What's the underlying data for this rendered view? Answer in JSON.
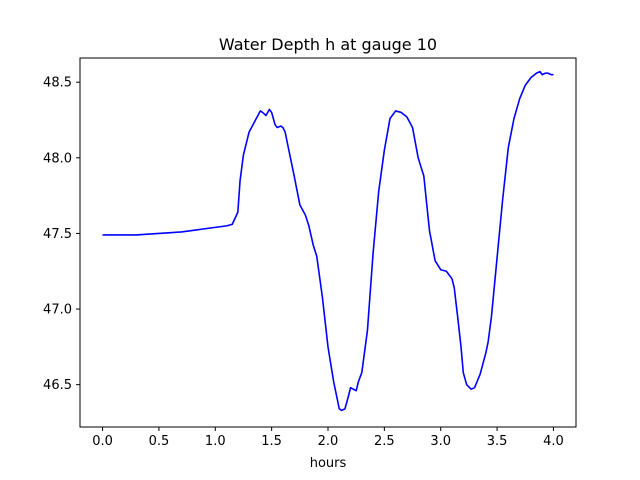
{
  "chart_data": {
    "type": "line",
    "title": "Water Depth h at gauge 10",
    "xlabel": "hours",
    "ylabel": "",
    "xlim": [
      -0.2,
      4.2
    ],
    "ylim": [
      46.22,
      48.66
    ],
    "xticks": [
      0.0,
      0.5,
      1.0,
      1.5,
      2.0,
      2.5,
      3.0,
      3.5,
      4.0
    ],
    "xtick_labels": [
      "0.0",
      "0.5",
      "1.0",
      "1.5",
      "2.0",
      "2.5",
      "3.0",
      "3.5",
      "4.0"
    ],
    "yticks": [
      46.5,
      47.0,
      47.5,
      48.0,
      48.5
    ],
    "ytick_labels": [
      "46.5",
      "47.0",
      "47.5",
      "48.0",
      "48.5"
    ],
    "grid": false,
    "series": [
      {
        "color": "#0000ff",
        "x": [
          0.0,
          0.3,
          0.5,
          0.7,
          0.8,
          0.9,
          1.0,
          1.1,
          1.15,
          1.2,
          1.22,
          1.25,
          1.27,
          1.3,
          1.35,
          1.4,
          1.42,
          1.45,
          1.48,
          1.5,
          1.53,
          1.55,
          1.58,
          1.6,
          1.62,
          1.65,
          1.7,
          1.75,
          1.8,
          1.83,
          1.87,
          1.9,
          1.95,
          2.0,
          2.05,
          2.1,
          2.12,
          2.15,
          2.18,
          2.2,
          2.25,
          2.27,
          2.3,
          2.35,
          2.4,
          2.45,
          2.5,
          2.55,
          2.6,
          2.65,
          2.7,
          2.75,
          2.8,
          2.85,
          2.9,
          2.95,
          3.0,
          3.05,
          3.1,
          3.12,
          3.15,
          3.18,
          3.2,
          3.23,
          3.27,
          3.3,
          3.35,
          3.4,
          3.42,
          3.45,
          3.5,
          3.55,
          3.6,
          3.65,
          3.7,
          3.75,
          3.8,
          3.85,
          3.88,
          3.9,
          3.93,
          3.95,
          3.98,
          4.0
        ],
        "y": [
          47.49,
          47.49,
          47.5,
          47.51,
          47.52,
          47.53,
          47.54,
          47.55,
          47.56,
          47.64,
          47.85,
          48.02,
          48.08,
          48.17,
          48.24,
          48.31,
          48.3,
          48.28,
          48.32,
          48.3,
          48.22,
          48.2,
          48.21,
          48.2,
          48.17,
          48.06,
          47.88,
          47.69,
          47.62,
          47.55,
          47.42,
          47.35,
          47.08,
          46.75,
          46.52,
          46.34,
          46.33,
          46.34,
          46.42,
          46.48,
          46.46,
          46.52,
          46.58,
          46.86,
          47.37,
          47.78,
          48.05,
          48.26,
          48.31,
          48.3,
          48.27,
          48.2,
          48.0,
          47.88,
          47.52,
          47.32,
          47.26,
          47.25,
          47.2,
          47.14,
          46.95,
          46.75,
          46.58,
          46.5,
          46.47,
          46.48,
          46.57,
          46.71,
          46.78,
          46.95,
          47.34,
          47.73,
          48.07,
          48.26,
          48.39,
          48.48,
          48.53,
          48.56,
          48.57,
          48.55,
          48.56,
          48.56,
          48.55,
          48.55
        ]
      }
    ]
  }
}
